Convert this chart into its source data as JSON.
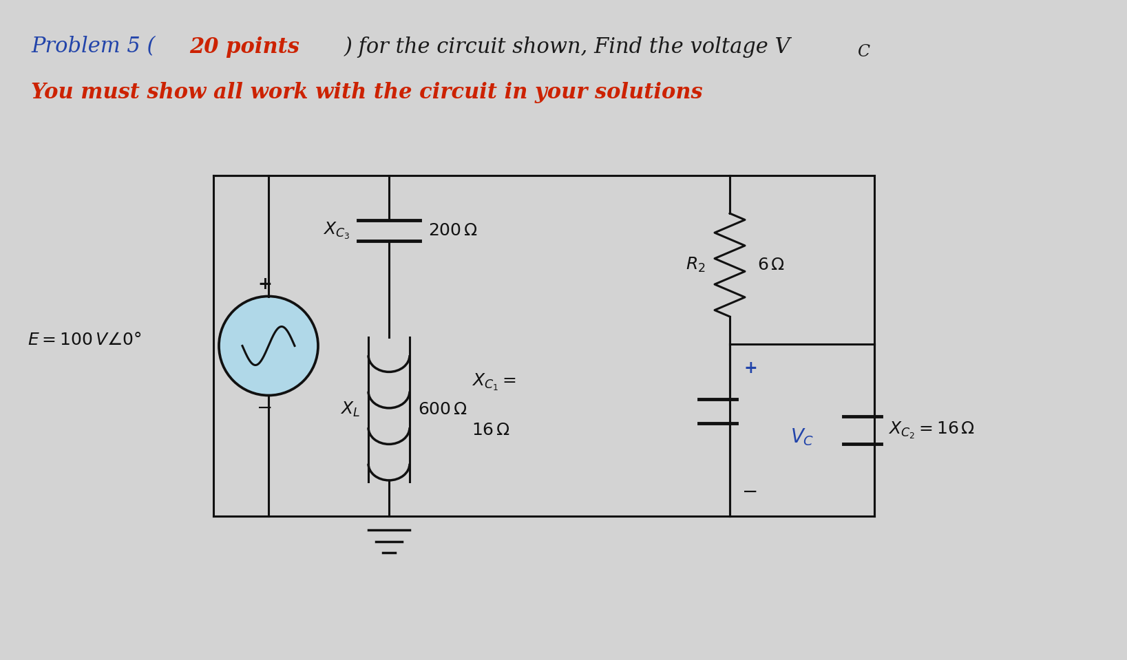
{
  "bg_color": "#d3d3d3",
  "circuit_color": "#111111",
  "text_color_blue": "#2244aa",
  "text_color_red": "#cc2200",
  "text_color_dark": "#1a1a1a",
  "title1_parts": [
    {
      "text": "Problem 5 (",
      "color": "#2244aa",
      "bold": false
    },
    {
      "text": "20 points",
      "color": "#cc2200",
      "bold": true
    },
    {
      "text": ") for the circuit shown, Find the voltage V",
      "color": "#1a1a1a",
      "bold": false
    },
    {
      "text": "C",
      "color": "#1a1a1a",
      "bold": false,
      "sub": true
    }
  ],
  "title2": "You must show all work with the circuit in your solutions",
  "source_label": "E = 100 V",
  "angle_label": "∠0°",
  "xc3_label": "$X_{C_3}$",
  "xc3_val": "200 Ω",
  "xl_label": "$X_L$",
  "xl_val": "600 Ω",
  "r2_label": "$R_2$",
  "r2_val": "6 Ω",
  "xc1_label": "$X_{C_1} =$",
  "xc1_val": "16 Ω",
  "vc_label": "$V_C$",
  "xc2_val": "$X_{C_2} = 16\\,\\Omega$",
  "lw": 2.2,
  "src_color": "#b0d8e8"
}
